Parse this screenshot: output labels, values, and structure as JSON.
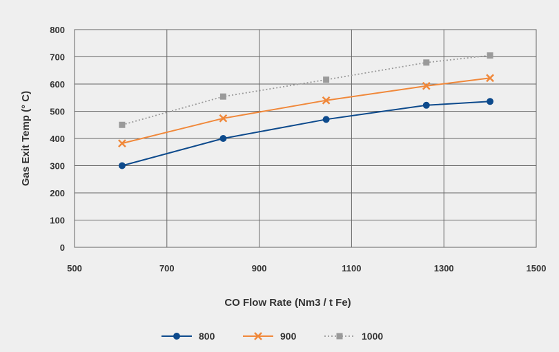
{
  "chart_data": {
    "type": "line",
    "title": "",
    "xlabel": "CO Flow Rate (Nm3 / t Fe)",
    "ylabel": "Gas Exit Temp (° C)",
    "xlim": [
      500,
      1500
    ],
    "ylim": [
      0,
      800
    ],
    "x_ticks": [
      500,
      700,
      900,
      1100,
      1300,
      1500
    ],
    "y_ticks": [
      0,
      100,
      200,
      300,
      400,
      500,
      600,
      700,
      800
    ],
    "grid": true,
    "legend_position": "bottom",
    "series": [
      {
        "name": "800",
        "color": "#0d4a8c",
        "marker": "circle",
        "line_style": "solid",
        "x": [
          603,
          822,
          1045,
          1262,
          1400
        ],
        "y": [
          300,
          400,
          470,
          522,
          536
        ]
      },
      {
        "name": "900",
        "color": "#f0883a",
        "marker": "x",
        "line_style": "solid",
        "x": [
          603,
          822,
          1045,
          1262,
          1400
        ],
        "y": [
          382,
          474,
          540,
          593,
          622
        ]
      },
      {
        "name": "1000",
        "color": "#9a9a9a",
        "marker": "square",
        "line_style": "dotted",
        "x": [
          603,
          822,
          1045,
          1262,
          1400
        ],
        "y": [
          450,
          554,
          616,
          679,
          705
        ]
      }
    ]
  }
}
